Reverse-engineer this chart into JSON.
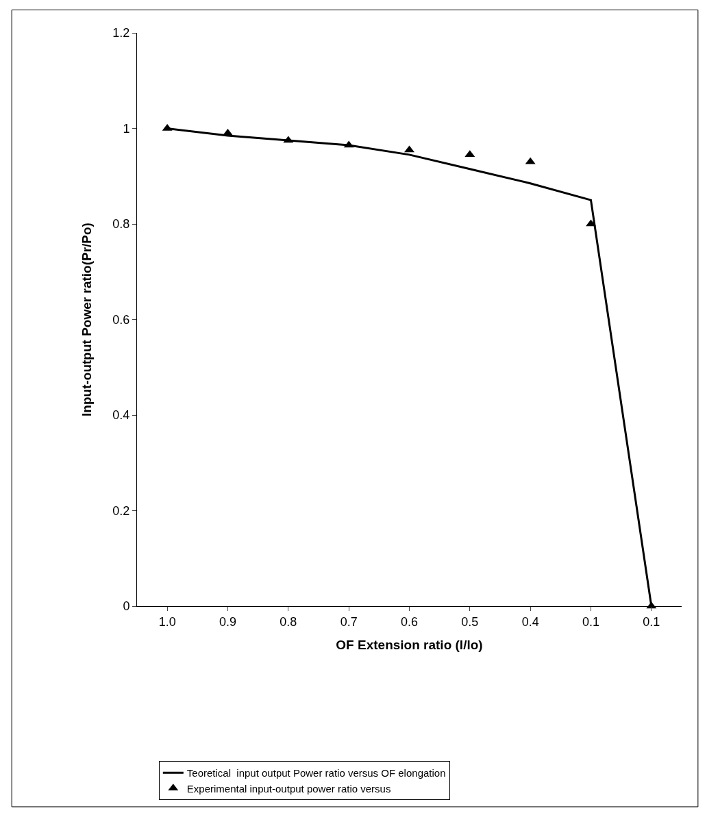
{
  "chart_data": {
    "type": "line",
    "xlabel": "OF Extension ratio (l/lo)",
    "ylabel": "Input-output Power ratio(Pr/Po)",
    "categories": [
      "1.0",
      "0.9",
      "0.8",
      "0.7",
      "0.6",
      "0.5",
      "0.4",
      "0.1",
      "0.1"
    ],
    "ylim": [
      0,
      1.2
    ],
    "yticks": [
      0,
      0.2,
      0.4,
      0.6,
      0.8,
      1,
      1.2
    ],
    "grid": false,
    "legend": "bottom",
    "series": [
      {
        "name": "Teoretical  input output Power ratio versus OF elongation",
        "color": "#000000",
        "marker": "none",
        "values": [
          1.0,
          0.985,
          0.975,
          0.965,
          0.945,
          0.915,
          0.885,
          0.85,
          0.0
        ]
      },
      {
        "name": "Experimental input-output power ratio versus",
        "type": "scatter",
        "color": "#000000",
        "marker": "triangle",
        "values": [
          1.0,
          0.99,
          0.975,
          0.965,
          0.955,
          0.945,
          0.93,
          0.8,
          0.0
        ]
      }
    ]
  }
}
